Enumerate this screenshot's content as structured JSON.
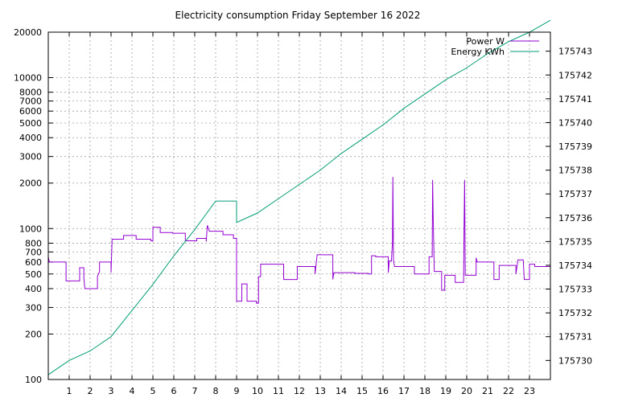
{
  "chart_data": {
    "type": "line",
    "title": "Electricity consumption Friday September 16 2022",
    "x": {
      "range": [
        0,
        24
      ],
      "ticks": [
        1,
        2,
        3,
        4,
        5,
        6,
        7,
        8,
        9,
        10,
        11,
        12,
        13,
        14,
        15,
        16,
        17,
        18,
        19,
        20,
        21,
        22,
        23
      ]
    },
    "y_left": {
      "scale": "log",
      "range": [
        100,
        20000
      ],
      "ticks": [
        100,
        200,
        300,
        400,
        500,
        600,
        700,
        800,
        1000,
        2000,
        3000,
        4000,
        5000,
        6000,
        7000,
        8000,
        10000,
        20000
      ]
    },
    "y_right": {
      "scale": "linear",
      "range": [
        175729.2,
        175743.8
      ],
      "ticks": [
        175730,
        175731,
        175732,
        175733,
        175734,
        175735,
        175736,
        175737,
        175738,
        175739,
        175740,
        175741,
        175742,
        175743
      ]
    },
    "grid": true,
    "legend": "top-right",
    "series": [
      {
        "name": "Power W",
        "axis": "left",
        "color": "#9400d3",
        "step": true,
        "points": [
          [
            0,
            650
          ],
          [
            0.05,
            600
          ],
          [
            0.85,
            600
          ],
          [
            0.85,
            450
          ],
          [
            1.5,
            450
          ],
          [
            1.5,
            550
          ],
          [
            1.7,
            550
          ],
          [
            1.7,
            470
          ],
          [
            1.75,
            400
          ],
          [
            2.35,
            400
          ],
          [
            2.35,
            480
          ],
          [
            2.45,
            520
          ],
          [
            2.45,
            600
          ],
          [
            3.0,
            600
          ],
          [
            3.0,
            510
          ],
          [
            3.05,
            850
          ],
          [
            3.6,
            850
          ],
          [
            3.6,
            900
          ],
          [
            4.2,
            900
          ],
          [
            4.2,
            850
          ],
          [
            4.9,
            850
          ],
          [
            4.9,
            830
          ],
          [
            5.0,
            830
          ],
          [
            5.0,
            1020
          ],
          [
            5.35,
            1020
          ],
          [
            5.35,
            940
          ],
          [
            5.95,
            940
          ],
          [
            5.95,
            930
          ],
          [
            6.55,
            930
          ],
          [
            6.55,
            830
          ],
          [
            7.1,
            830
          ],
          [
            7.1,
            860
          ],
          [
            7.55,
            860
          ],
          [
            7.55,
            820
          ],
          [
            7.6,
            1050
          ],
          [
            7.7,
            960
          ],
          [
            8.35,
            960
          ],
          [
            8.35,
            910
          ],
          [
            8.85,
            910
          ],
          [
            8.85,
            860
          ],
          [
            9.0,
            860
          ],
          [
            9.0,
            330
          ],
          [
            9.25,
            330
          ],
          [
            9.25,
            430
          ],
          [
            9.5,
            430
          ],
          [
            9.5,
            330
          ],
          [
            9.95,
            330
          ],
          [
            9.95,
            320
          ],
          [
            10.05,
            320
          ],
          [
            10.05,
            480
          ],
          [
            10.15,
            480
          ],
          [
            10.15,
            580
          ],
          [
            11.25,
            580
          ],
          [
            11.25,
            460
          ],
          [
            11.9,
            460
          ],
          [
            11.9,
            560
          ],
          [
            12.75,
            560
          ],
          [
            12.75,
            500
          ],
          [
            12.85,
            670
          ],
          [
            13.6,
            670
          ],
          [
            13.6,
            460
          ],
          [
            13.65,
            510
          ],
          [
            14.65,
            510
          ],
          [
            14.65,
            505
          ],
          [
            15.3,
            505
          ],
          [
            15.3,
            500
          ],
          [
            15.45,
            500
          ],
          [
            15.45,
            660
          ],
          [
            15.65,
            660
          ],
          [
            15.65,
            650
          ],
          [
            16.25,
            650
          ],
          [
            16.25,
            510
          ],
          [
            16.3,
            610
          ],
          [
            16.4,
            610
          ],
          [
            16.45,
            800
          ],
          [
            16.47,
            2200
          ],
          [
            16.5,
            610
          ],
          [
            16.55,
            560
          ],
          [
            17.5,
            560
          ],
          [
            17.5,
            500
          ],
          [
            18.2,
            500
          ],
          [
            18.2,
            650
          ],
          [
            18.35,
            650
          ],
          [
            18.37,
            2100
          ],
          [
            18.4,
            1150
          ],
          [
            18.45,
            520
          ],
          [
            18.8,
            520
          ],
          [
            18.8,
            390
          ],
          [
            18.95,
            390
          ],
          [
            18.95,
            490
          ],
          [
            19.45,
            490
          ],
          [
            19.45,
            440
          ],
          [
            19.85,
            440
          ],
          [
            19.87,
            950
          ],
          [
            19.9,
            2100
          ],
          [
            19.93,
            490
          ],
          [
            20.45,
            490
          ],
          [
            20.45,
            640
          ],
          [
            20.5,
            600
          ],
          [
            21.3,
            600
          ],
          [
            21.3,
            460
          ],
          [
            21.55,
            460
          ],
          [
            21.55,
            570
          ],
          [
            22.35,
            570
          ],
          [
            22.35,
            500
          ],
          [
            22.45,
            620
          ],
          [
            22.7,
            620
          ],
          [
            22.75,
            460
          ],
          [
            23.0,
            460
          ],
          [
            23.0,
            580
          ],
          [
            23.25,
            580
          ],
          [
            23.25,
            560
          ],
          [
            24,
            560
          ]
        ]
      },
      {
        "name": "Energy KWh",
        "axis": "right",
        "color": "#009e73",
        "step": false,
        "points": [
          [
            0,
            175729.4
          ],
          [
            1,
            175730.0
          ],
          [
            2,
            175730.4
          ],
          [
            3,
            175731.0
          ],
          [
            4,
            175732.1
          ],
          [
            5,
            175733.2
          ],
          [
            6,
            175734.4
          ],
          [
            7,
            175735.5
          ],
          [
            8,
            175736.7
          ],
          [
            9,
            175736.7
          ],
          [
            9,
            175735.8
          ],
          [
            10,
            175736.2
          ],
          [
            11,
            175736.8
          ],
          [
            12,
            175737.4
          ],
          [
            13,
            175738.0
          ],
          [
            14,
            175738.7
          ],
          [
            15,
            175739.3
          ],
          [
            16,
            175739.9
          ],
          [
            17,
            175740.6
          ],
          [
            18,
            175741.2
          ],
          [
            19,
            175741.8
          ],
          [
            20,
            175742.3
          ],
          [
            21,
            175742.9
          ],
          [
            22,
            175743.4
          ],
          [
            23,
            175743.8
          ],
          [
            24,
            175744.3
          ]
        ]
      }
    ]
  }
}
